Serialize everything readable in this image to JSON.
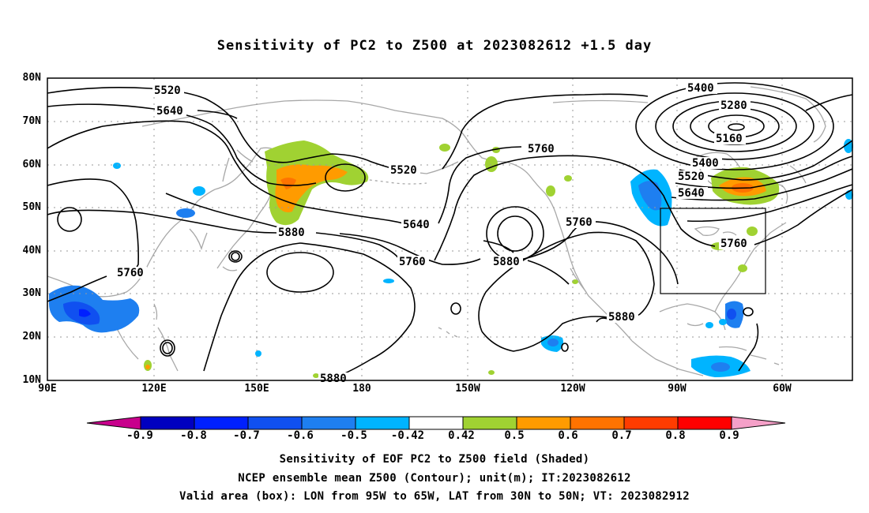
{
  "title": "Sensitivity of PC2 to Z500 at 2023082612 +1.5 day",
  "lat_labels": [
    "80N",
    "70N",
    "60N",
    "50N",
    "40N",
    "30N",
    "20N",
    "10N"
  ],
  "lon_labels": [
    "90E",
    "120E",
    "150E",
    "180",
    "150W",
    "120W",
    "90W",
    "60W"
  ],
  "contour_labels": [
    "5520",
    "5640",
    "5400",
    "5280",
    "5160",
    "5760",
    "5520",
    "5400",
    "5520",
    "5640",
    "5880",
    "5640",
    "5760",
    "5760",
    "5880",
    "5760",
    "5760",
    "5880",
    "5880"
  ],
  "valid_box": {
    "lon_from": "95W",
    "lon_to": "65W",
    "lat_from": "30N",
    "lat_to": "50N"
  },
  "colorbar": {
    "labels": [
      "-0.9",
      "-0.8",
      "-0.7",
      "-0.6",
      "-0.5",
      "-0.42",
      "0.42",
      "0.5",
      "0.6",
      "0.7",
      "0.8",
      "0.9"
    ],
    "colors": [
      "#c8008c",
      "#0000c0",
      "#0020ff",
      "#1050f0",
      "#1e7ff0",
      "#00b4ff",
      "#ffffff",
      "#a0d232",
      "#ff9b00",
      "#ff7300",
      "#ff3c00",
      "#ff0000",
      "#f5a0c8"
    ]
  },
  "captions": [
    "Sensitivity of EOF PC2 to Z500 field (Shaded)",
    "NCEP ensemble mean Z500 (Contour); unit(m); IT:2023082612",
    "Valid area (box): LON from 95W to 65W, LAT from 30N to 50N; VT: 2023082912"
  ]
}
